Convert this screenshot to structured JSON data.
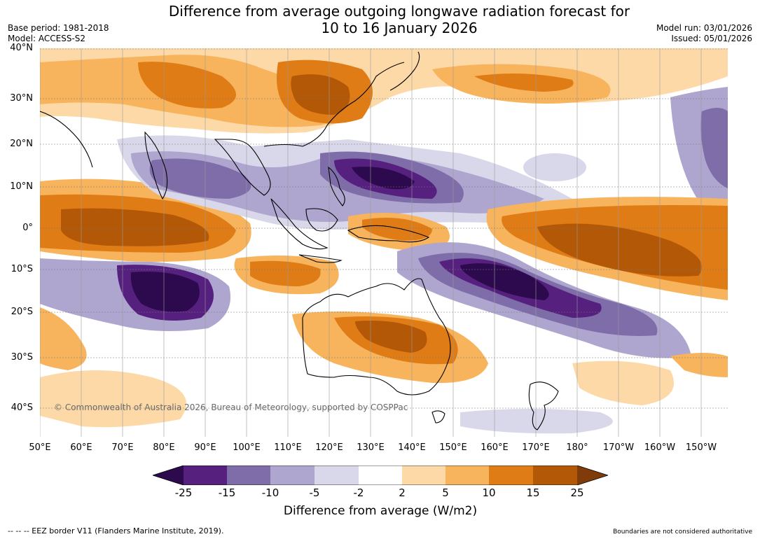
{
  "title": {
    "line1": "Difference from average outgoing longwave radiation forecast for",
    "line2": "10 to 16 January 2026"
  },
  "meta": {
    "base_period": "Base period: 1981-2018",
    "model": "Model: ACCESS-S2",
    "model_run": "Model run: 03/01/2026",
    "issued": "Issued: 05/01/2026"
  },
  "map": {
    "lat_labels": [
      "40°N",
      "30°N",
      "20°N",
      "10°N",
      "0°",
      "10°S",
      "20°S",
      "30°S",
      "40°S"
    ],
    "lon_labels": [
      "50°E",
      "60°E",
      "70°E",
      "80°E",
      "90°E",
      "100°E",
      "110°E",
      "120°E",
      "130°E",
      "140°E",
      "150°E",
      "160°E",
      "170°E",
      "180°",
      "170°W",
      "160°W",
      "150°W"
    ],
    "copyright": "© Commonwealth of Australia 2026, Bureau of Meteorology, supported by COSPPac"
  },
  "colorbar": {
    "ticks": [
      "-25",
      "-15",
      "-10",
      "-5",
      "-2",
      "2",
      "5",
      "10",
      "15",
      "25"
    ],
    "colors": [
      "#2d0a4e",
      "#56207f",
      "#7f6daa",
      "#aea6cf",
      "#d9d8ea",
      "#ffffff",
      "#fdd9a8",
      "#f7b45c",
      "#e07c16",
      "#b35807",
      "#7f3b0a"
    ],
    "title": "Difference from average (W/m2)"
  },
  "footer": {
    "eez": "--  --  -- EEZ border V11 (Flanders Marine Institute, 2019).",
    "disclaimer": "Boundaries are not considered authoritative"
  }
}
